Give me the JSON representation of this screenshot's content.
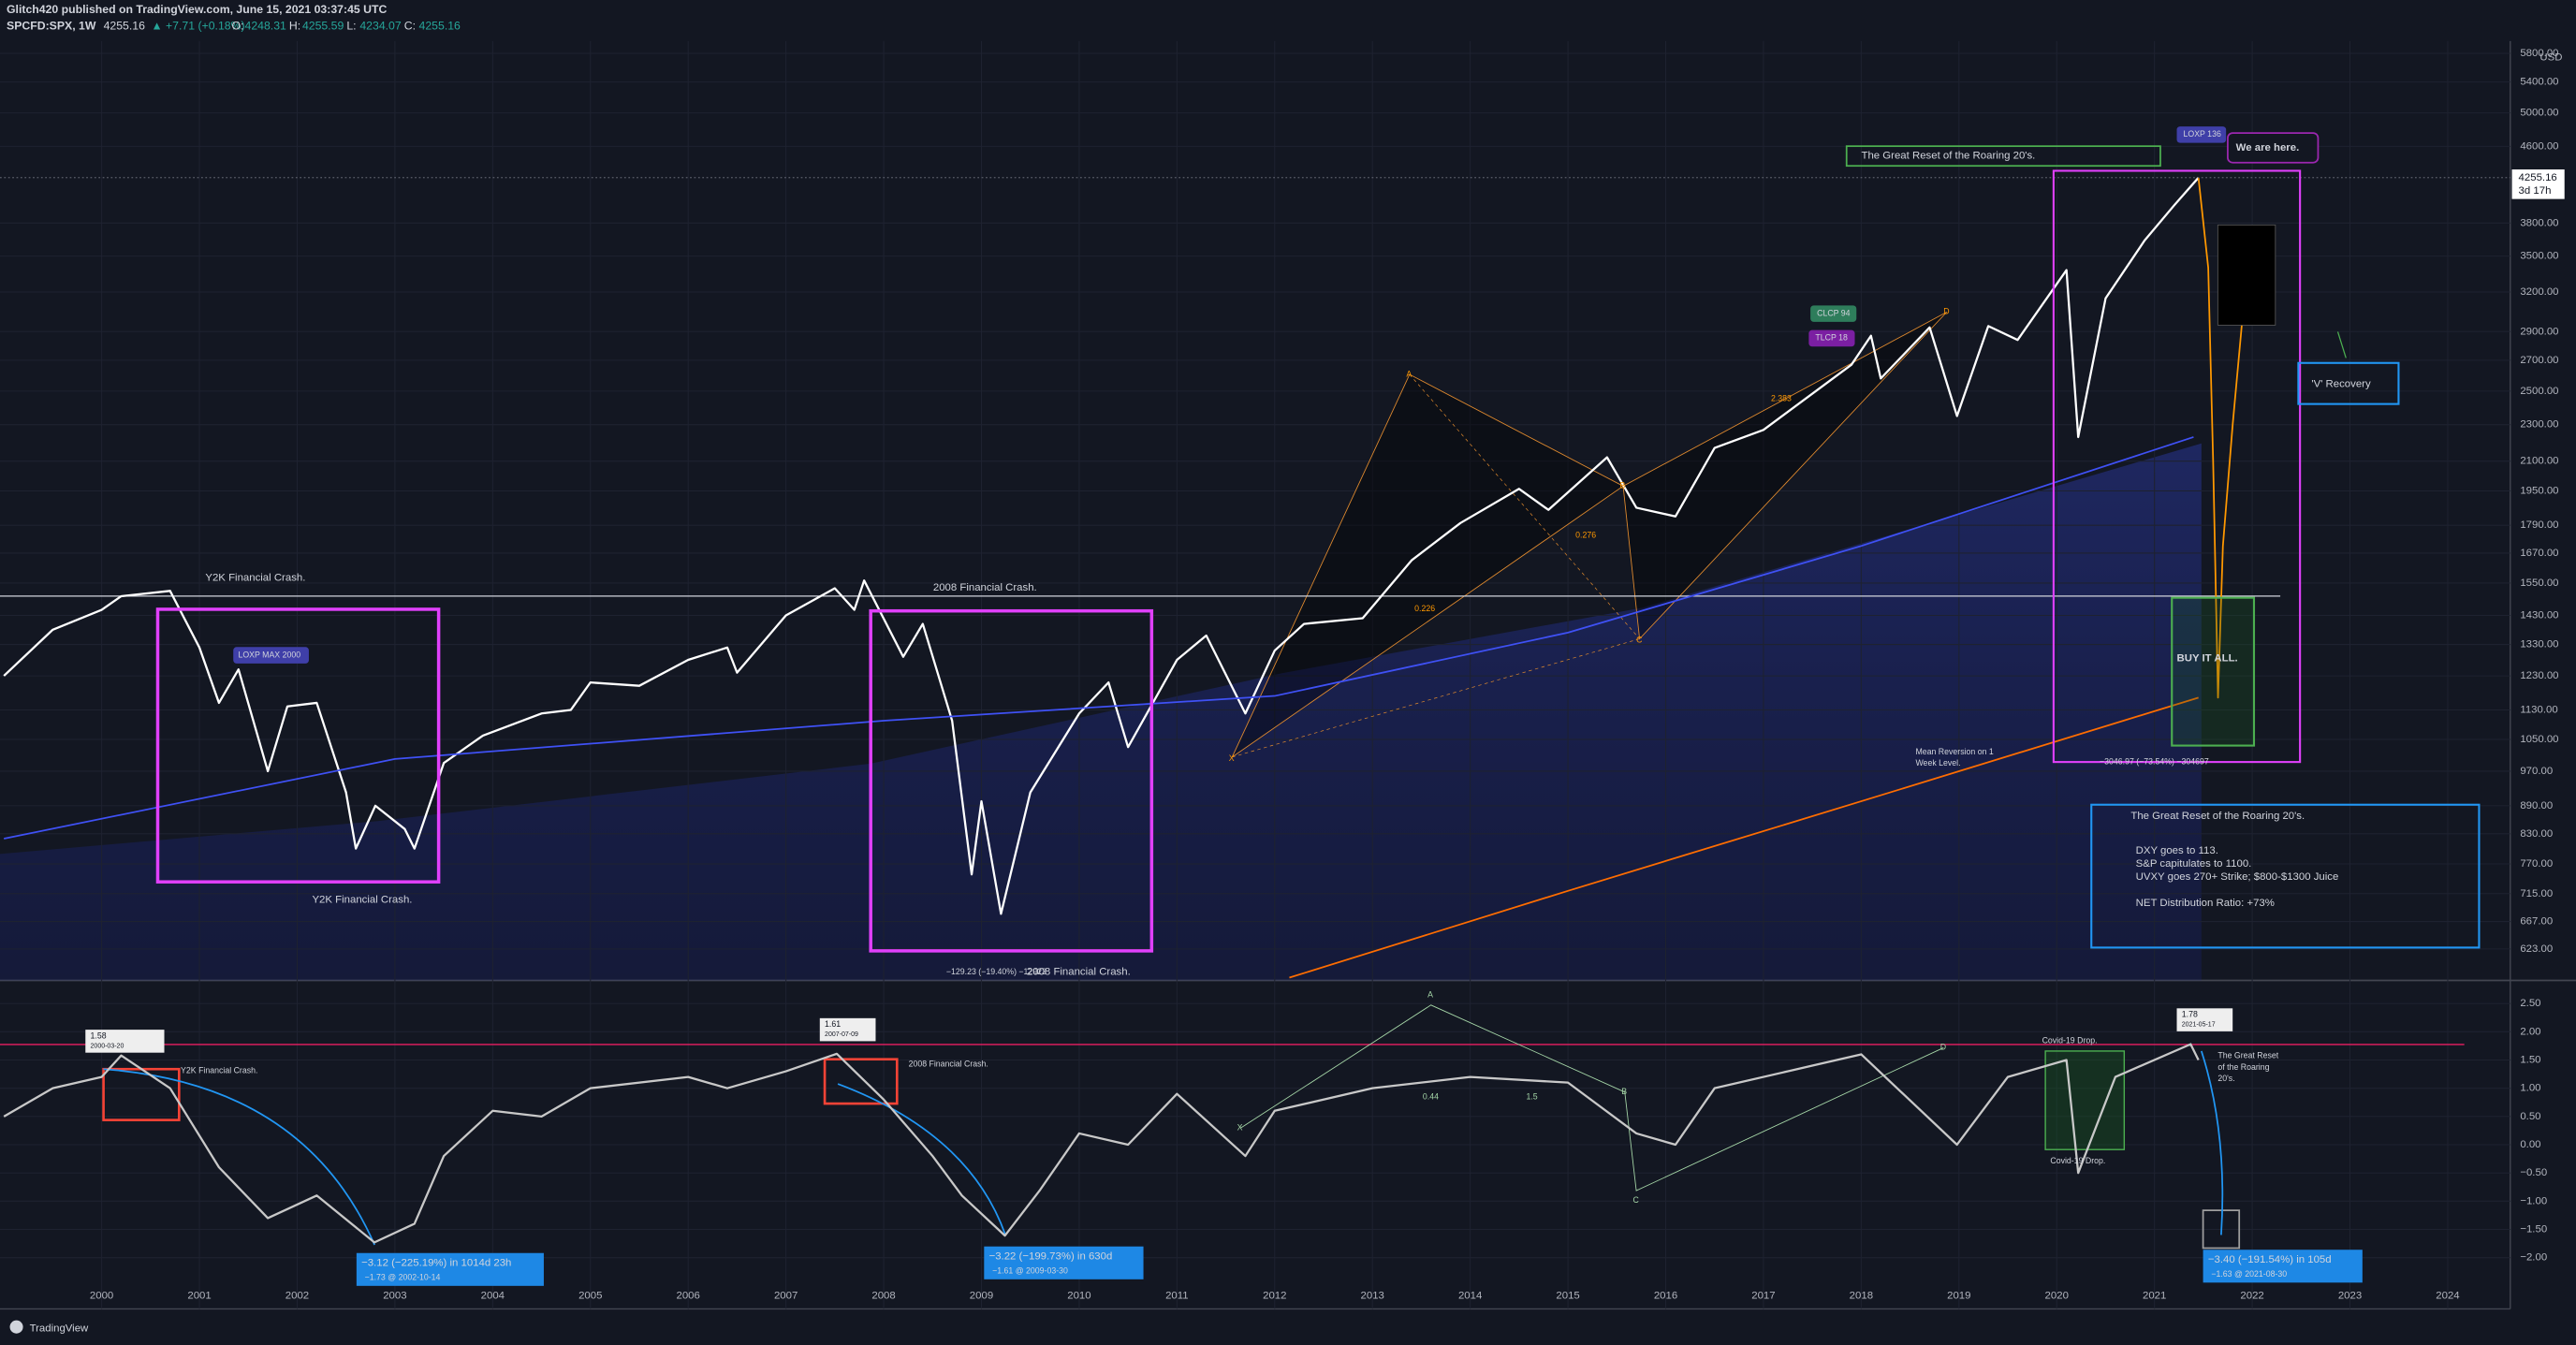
{
  "header": {
    "author_line": "Glitch420 published on TradingView.com, June 15, 2021 03:37:45 UTC",
    "symbol": "SPCFD:SPX, 1W",
    "last": "4255.16",
    "change": "▲ +7.71 (+0.18%)",
    "ohlc": [
      {
        "label": "O:",
        "value": "4248.31"
      },
      {
        "label": "H:",
        "value": "4255.59"
      },
      {
        "label": "L:",
        "value": "4234.07"
      },
      {
        "label": "C:",
        "value": "4255.16"
      }
    ]
  },
  "chart_data": [
    {
      "type": "line",
      "log_scale": true,
      "grid": true,
      "currency": "USD",
      "xlim": [
        1998.96,
        2024.64
      ],
      "ylim": [
        576,
        5980
      ],
      "xticks": [
        2000,
        2001,
        2002,
        2003,
        2004,
        2005,
        2006,
        2007,
        2008,
        2009,
        2010,
        2011,
        2012,
        2013,
        2014,
        2015,
        2016,
        2017,
        2018,
        2019,
        2020,
        2021,
        2022,
        2023,
        2024
      ],
      "yticks": [
        {
          "value": 623,
          "label": "623.00"
        },
        {
          "value": 667,
          "label": "667.00"
        },
        {
          "value": 715,
          "label": "715.00"
        },
        {
          "value": 770,
          "label": "770.00"
        },
        {
          "value": 830,
          "label": "830.00"
        },
        {
          "value": 890,
          "label": "890.00"
        },
        {
          "value": 970,
          "label": "970.00"
        },
        {
          "value": 1050,
          "label": "1050.00"
        },
        {
          "value": 1130,
          "label": "1130.00"
        },
        {
          "value": 1230,
          "label": "1230.00"
        },
        {
          "value": 1330,
          "label": "1330.00"
        },
        {
          "value": 1430,
          "label": "1430.00"
        },
        {
          "value": 1550,
          "label": "1550.00"
        },
        {
          "value": 1670,
          "label": "1670.00"
        },
        {
          "value": 1790,
          "label": "1790.00"
        },
        {
          "value": 1950,
          "label": "1950.00"
        },
        {
          "value": 2100,
          "label": "2100.00"
        },
        {
          "value": 2300,
          "label": "2300.00"
        },
        {
          "value": 2500,
          "label": "2500.00"
        },
        {
          "value": 2700,
          "label": "2700.00"
        },
        {
          "value": 2900,
          "label": "2900.00"
        },
        {
          "value": 3200,
          "label": "3200.00"
        },
        {
          "value": 3500,
          "label": "3500.00"
        },
        {
          "value": 3800,
          "label": "3800.00"
        },
        {
          "value": 4600,
          "label": "4600.00"
        },
        {
          "value": 5000,
          "label": "5000.00"
        },
        {
          "value": 5400,
          "label": "5400.00"
        },
        {
          "value": 5800,
          "label": "5800.00"
        }
      ],
      "last_price": 4255.16,
      "countdown": "3d 17h",
      "series": [
        {
          "color": "#ffffff",
          "x": [
            1999.0,
            1999.5,
            2000.0,
            2000.2,
            2000.7,
            2001.0,
            2001.2,
            2001.4,
            2001.7,
            2001.9,
            2002.2,
            2002.5,
            2002.6,
            2002.8,
            2003.1,
            2003.2,
            2003.5,
            2003.9,
            2004.5,
            2004.8,
            2005.0,
            2005.5,
            2006.0,
            2006.4,
            2006.5,
            2007.0,
            2007.5,
            2007.7,
            2007.8,
            2008.2,
            2008.4,
            2008.7,
            2008.9,
            2009.0,
            2009.2,
            2009.5,
            2010.0,
            2010.3,
            2010.5,
            2011.0,
            2011.3,
            2011.7,
            2012.0,
            2012.3,
            2012.9,
            2013.4,
            2013.9,
            2014.5,
            2014.8,
            2015.4,
            2015.7,
            2016.1,
            2016.5,
            2017.0,
            2017.9,
            2018.1,
            2018.2,
            2018.7,
            2018.98,
            2019.3,
            2019.6,
            2020.1,
            2020.22,
            2020.5,
            2020.9,
            2021.2,
            2021.45
          ],
          "values": [
            1230,
            1380,
            1450,
            1500,
            1520,
            1320,
            1150,
            1250,
            970,
            1140,
            1150,
            920,
            800,
            890,
            840,
            800,
            990,
            1060,
            1120,
            1130,
            1210,
            1200,
            1280,
            1320,
            1240,
            1430,
            1530,
            1450,
            1560,
            1290,
            1400,
            1100,
            750,
            900,
            680,
            920,
            1120,
            1210,
            1030,
            1280,
            1360,
            1120,
            1310,
            1400,
            1420,
            1640,
            1800,
            1960,
            1860,
            2120,
            1870,
            1830,
            2170,
            2270,
            2670,
            2870,
            2580,
            2930,
            2350,
            2940,
            2840,
            3380,
            2230,
            3150,
            3640,
            3970,
            4255.16
          ]
        },
        {
          "color": "#ff9800",
          "x": [
            2021.45,
            2021.55,
            2021.6,
            2021.65,
            2021.7,
            2021.8,
            2021.9
          ],
          "values": [
            4255.16,
            3400,
            2100,
            1165,
            1700,
            2300,
            3000
          ]
        },
        {
          "color": "#3f51f5",
          "x": [
            1999.0,
            2003.0,
            2008.0,
            2012.0,
            2015.0,
            2018.0,
            2021.4
          ],
          "values": [
            820,
            1000,
            1100,
            1170,
            1370,
            1700,
            2230
          ]
        },
        {
          "color": "#ff6d00",
          "x": [
            2012.15,
            2015.0,
            2018.0,
            2021.45
          ],
          "values": [
            580,
            720,
            900,
            1165
          ]
        }
      ],
      "annotations": {
        "y2k_top": "Y2K Financial Crash.",
        "y2k_bottom": "Y2K Financial Crash.",
        "crash_2008_top": "2008 Financial Crash.",
        "crash_2008_bottom": "2008 Financial Crash.",
        "crash_2008_measure": "−129.23 (−19.40%) −12923",
        "loxp_max": "LOXP MAX 2000",
        "loxp_136": "LOXP 136",
        "we_are_here": "We are here.",
        "great_reset_tag": "The Great Reset of the Roaring 20's.",
        "v_recovery": "'V' Recovery",
        "buy_it_all": "BUY IT ALL.",
        "mean_reversion": [
          "Mean Reversion on 1",
          "Week Level."
        ],
        "reset_measure": "−3046.97 (−73.54%) −304697",
        "harmonic": {
          "A": "A",
          "B": "B",
          "C": "C",
          "D": "D",
          "X": "X"
        },
        "ratios": [
          "0.226",
          "0.276",
          "2.383"
        ],
        "clcp": "CLCP 94",
        "tlcp": "TLCP 18",
        "info_box": {
          "title": "The Great Reset of the Roaring 20's.",
          "lines": [
            "DXY goes to 113.",
            "S&P capitulates to 1100.",
            "UVXY goes 270+ Strike; $800-$1300 Juice"
          ],
          "ratio": "NET Distribution Ratio:  +73%"
        }
      }
    },
    {
      "type": "line",
      "grid": true,
      "xlim": [
        1998.96,
        2024.64
      ],
      "ylim": [
        -2.5,
        2.88
      ],
      "yticks": [
        {
          "value": 2.5,
          "label": "2.50"
        },
        {
          "value": 2,
          "label": "2.00"
        },
        {
          "value": 1.5,
          "label": "1.50"
        },
        {
          "value": 1,
          "label": "1.00"
        },
        {
          "value": 0.5,
          "label": "0.50"
        },
        {
          "value": 0,
          "label": "0.00"
        },
        {
          "value": -0.5,
          "label": "−0.50"
        },
        {
          "value": -1,
          "label": "−1.00"
        },
        {
          "value": -1.5,
          "label": "−1.50"
        },
        {
          "value": -2,
          "label": "−2.00"
        }
      ],
      "series": [
        {
          "color": "#c8c8c8",
          "x": [
            1999.0,
            1999.5,
            2000.0,
            2000.2,
            2000.7,
            2001.2,
            2001.7,
            2002.2,
            2002.79,
            2003.2,
            2003.5,
            2004.0,
            2004.5,
            2005.0,
            2006.0,
            2006.4,
            2007.0,
            2007.52,
            2008.0,
            2008.5,
            2008.8,
            2009.24,
            2009.6,
            2010.0,
            2010.5,
            2011.0,
            2011.7,
            2012.0,
            2013.0,
            2014.0,
            2015.0,
            2015.7,
            2016.1,
            2016.5,
            2017.5,
            2018.0,
            2018.98,
            2019.5,
            2020.1,
            2020.22,
            2020.6,
            2021.37,
            2021.45
          ],
          "values": [
            0.5,
            1.0,
            1.2,
            1.58,
            1.0,
            -0.4,
            -1.3,
            -0.9,
            -1.73,
            -1.4,
            -0.2,
            0.6,
            0.5,
            1.0,
            1.2,
            1.0,
            1.3,
            1.61,
            0.8,
            -0.2,
            -0.9,
            -1.61,
            -0.8,
            0.2,
            0.0,
            0.9,
            -0.2,
            0.6,
            1.0,
            1.2,
            1.1,
            0.2,
            0.0,
            1.0,
            1.4,
            1.6,
            0.0,
            1.2,
            1.5,
            -0.5,
            1.2,
            1.78,
            1.5
          ]
        }
      ],
      "annotations": {
        "peaks": [
          {
            "value": "1.58",
            "date": "2000-03-20"
          },
          {
            "value": "1.61",
            "date": "2007-07-09"
          },
          {
            "value": "1.78",
            "date": "2021-05-17"
          }
        ],
        "drops": [
          {
            "main": "−3.12 (−225.19%) in 1014d 23h",
            "sub": "−1.73 @ 2002-10-14"
          },
          {
            "main": "−3.22 (−199.73%) in 630d",
            "sub": "−1.61 @ 2009-03-30"
          },
          {
            "main": "−3.40 (−191.54%) in 105d",
            "sub": "−1.63 @ 2021-08-30"
          }
        ],
        "y2k": "Y2K Financial Crash.",
        "crash_2008": "2008 Financial Crash.",
        "covid_top": "Covid-19 Drop.",
        "covid_bottom": "Covid-19 Drop.",
        "great_reset": [
          "The Great Reset",
          "of the Roaring",
          "20's."
        ],
        "harmonic": {
          "A": "A",
          "B": "B",
          "C": "C",
          "D": "D",
          "X": "X"
        },
        "ratios": [
          "0.44",
          "1.5"
        ]
      }
    }
  ],
  "footer": {
    "brand": "TradingView"
  }
}
